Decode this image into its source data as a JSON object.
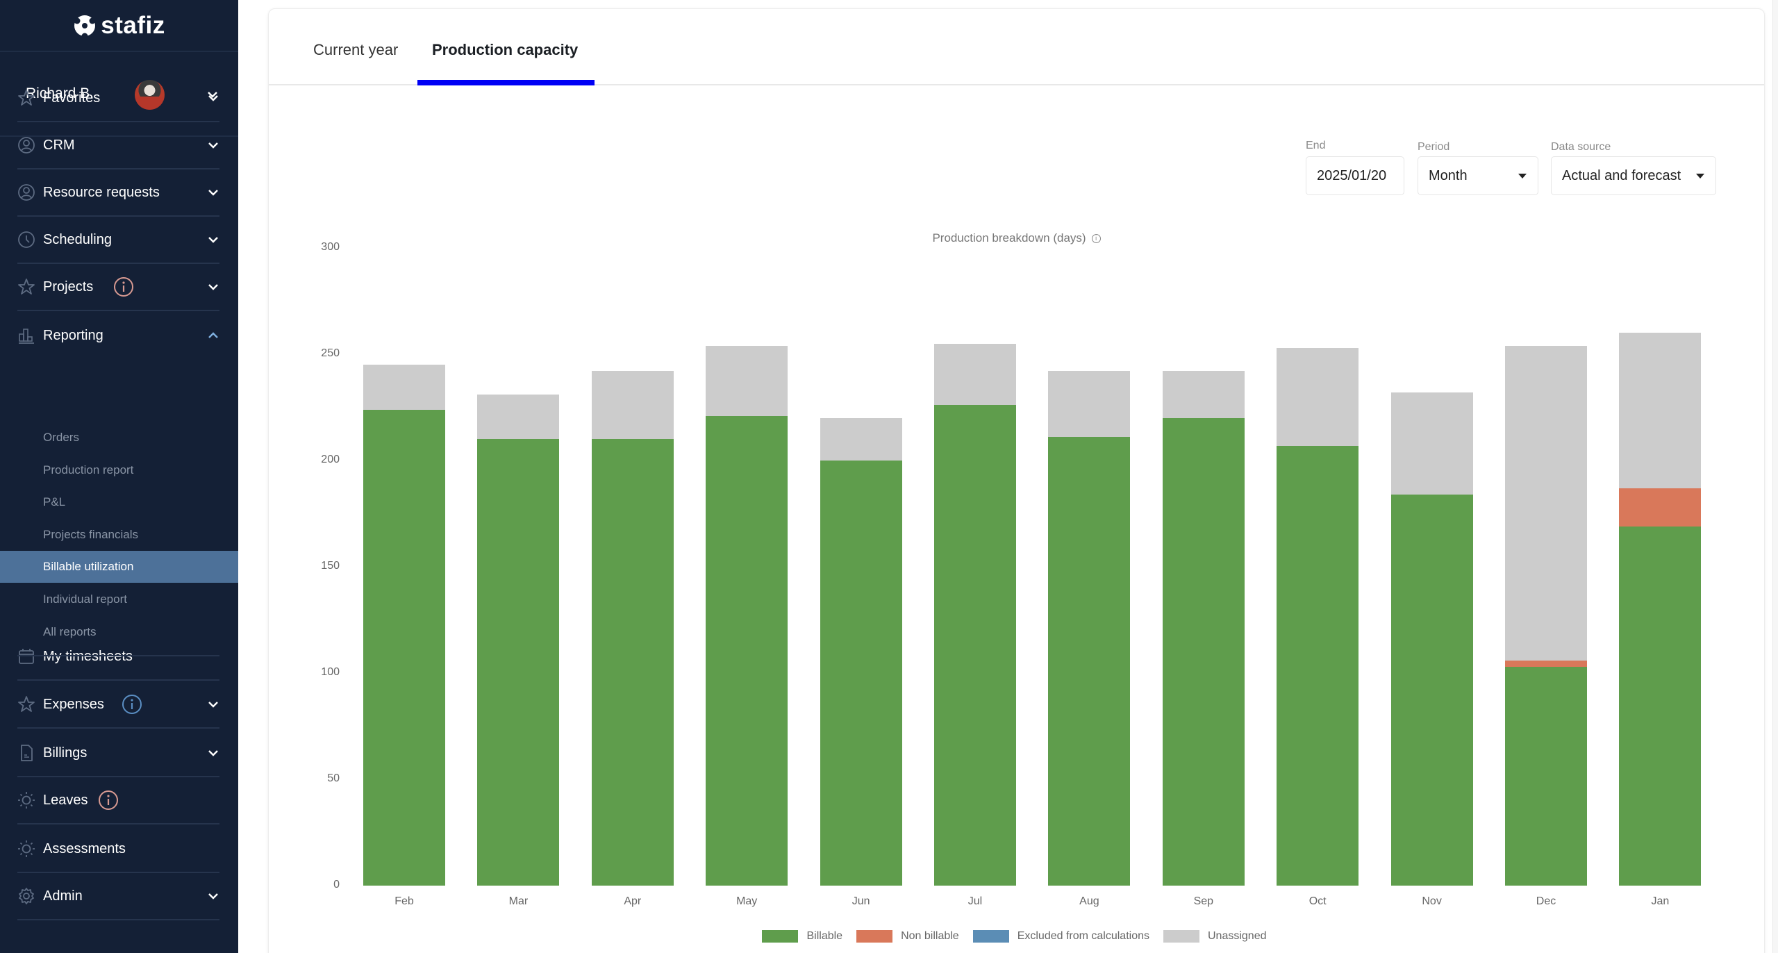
{
  "brand": {
    "name": "stafiz"
  },
  "user": {
    "name": "Richard B."
  },
  "sidebar": {
    "items": [
      {
        "label": "Favorites",
        "icon": "star-icon",
        "has_chevron": true,
        "chevron": "down"
      },
      {
        "label": "CRM",
        "icon": "user-circle-icon",
        "has_chevron": true,
        "chevron": "down"
      },
      {
        "label": "Resource requests",
        "icon": "user-circle-icon",
        "has_chevron": true,
        "chevron": "down"
      },
      {
        "label": "Scheduling",
        "icon": "clock-icon",
        "has_chevron": true,
        "chevron": "down"
      },
      {
        "label": "Projects",
        "icon": "star-icon",
        "has_chevron": true,
        "chevron": "down",
        "badge": "info",
        "badge_color": "#d89a92"
      },
      {
        "label": "Reporting",
        "icon": "bar-chart-icon",
        "has_chevron": true,
        "chevron": "up",
        "expanded": true
      },
      {
        "label": "My timesheets",
        "icon": "calendar-icon",
        "has_chevron": false
      },
      {
        "label": "Expenses",
        "icon": "star-icon",
        "has_chevron": true,
        "chevron": "down",
        "badge": "info",
        "badge_color": "#5b8fc4"
      },
      {
        "label": "Billings",
        "icon": "document-icon",
        "has_chevron": true,
        "chevron": "down"
      },
      {
        "label": "Leaves",
        "icon": "sun-icon",
        "has_chevron": false,
        "badge": "info",
        "badge_color": "#d89a92"
      },
      {
        "label": "Assessments",
        "icon": "sun-icon",
        "has_chevron": false
      },
      {
        "label": "Admin",
        "icon": "gear-icon",
        "has_chevron": true,
        "chevron": "down"
      }
    ],
    "reporting_subitems": [
      {
        "label": "Orders"
      },
      {
        "label": "Production report"
      },
      {
        "label": "P&L"
      },
      {
        "label": "Projects financials"
      },
      {
        "label": "Billable utilization",
        "active": true
      },
      {
        "label": "Individual report"
      },
      {
        "label": "All reports"
      }
    ]
  },
  "tabs": [
    {
      "label": "Current year",
      "active": false
    },
    {
      "label": "Production capacity",
      "active": true
    }
  ],
  "controls": {
    "end": {
      "label": "End",
      "value": "2025/01/20"
    },
    "period": {
      "label": "Period",
      "value": "Month"
    },
    "data_source": {
      "label": "Data source",
      "value": "Actual and forecast"
    }
  },
  "colors": {
    "sidebar_bg": "#142036",
    "active_item": "#4d7199",
    "tab_underline": "#0000f5",
    "billable": "#5f9d4c",
    "non_billable": "#d9785a",
    "excluded": "#5b8db5",
    "unassigned": "#cccccc"
  },
  "chart_data": {
    "type": "bar",
    "stacked": true,
    "title": "Production breakdown (days)",
    "xlabel": "",
    "ylabel": "",
    "ylim": [
      0,
      300
    ],
    "yticks": [
      0,
      50,
      100,
      150,
      200,
      250,
      300
    ],
    "grid": false,
    "legend_position": "bottom",
    "categories": [
      "Feb",
      "Mar",
      "Apr",
      "May",
      "Jun",
      "Jul",
      "Aug",
      "Sep",
      "Oct",
      "Nov",
      "Dec",
      "Jan"
    ],
    "series": [
      {
        "name": "Billable",
        "color": "#5f9d4c",
        "values": [
          224,
          210,
          210,
          221,
          200,
          226,
          211,
          220,
          207,
          184,
          103,
          169
        ]
      },
      {
        "name": "Non billable",
        "color": "#d9785a",
        "values": [
          0,
          0,
          0,
          0,
          0,
          0,
          0,
          0,
          0,
          0,
          3,
          18
        ]
      },
      {
        "name": "Excluded from calculations",
        "color": "#5b8db5",
        "values": [
          0,
          0,
          0,
          0,
          0,
          0,
          0,
          0,
          0,
          0,
          0,
          0
        ]
      },
      {
        "name": "Unassigned",
        "color": "#cccccc",
        "values": [
          21,
          21,
          32,
          33,
          20,
          29,
          31,
          22,
          46,
          48,
          148,
          73
        ]
      }
    ]
  }
}
